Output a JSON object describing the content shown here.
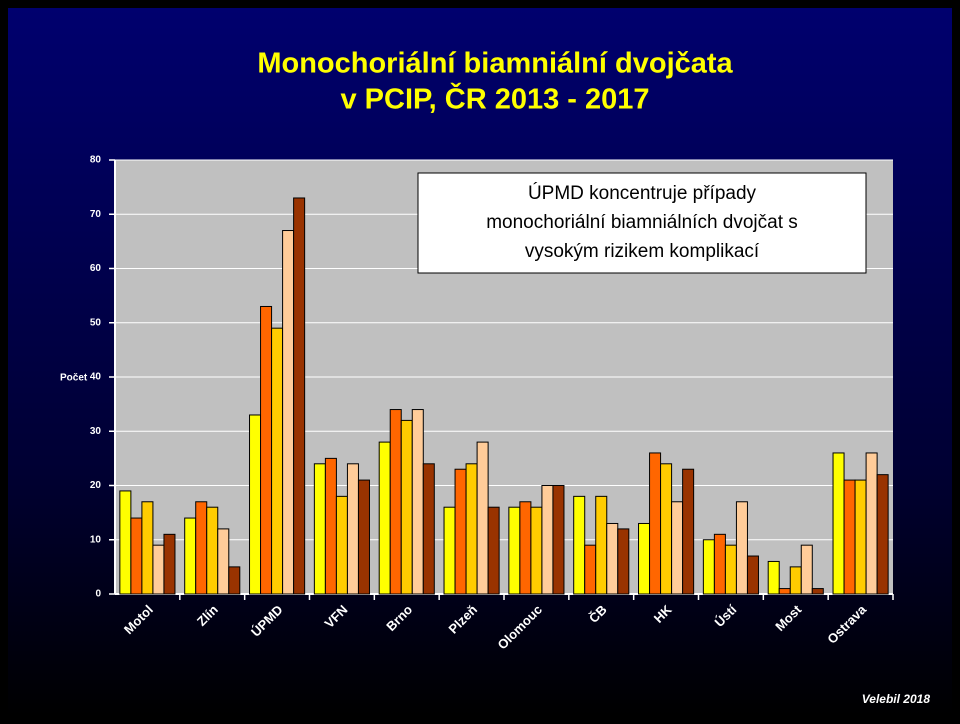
{
  "chart_data": {
    "type": "bar",
    "title": [
      "Monochoriální biamniální dvojčata",
      "v PCIP, ČR 2013 - 2017"
    ],
    "y_label": "Počet",
    "annotation": [
      "ÚPMD koncentruje případy",
      "monochoriální biamniálních dvojčat s",
      "vysokým rizikem komplikací"
    ],
    "footer": "Velebil 2018",
    "categories": [
      "Motol",
      "Zlín",
      "ÚPMD",
      "VFN",
      "Brno",
      "Plzeň",
      "Olomouc",
      "ČB",
      "HK",
      "Ústí",
      "Most",
      "Ostrava"
    ],
    "series": [
      {
        "color": "#ffff00",
        "values": [
          19,
          14,
          33,
          24,
          28,
          16,
          16,
          18,
          13,
          10,
          6,
          26
        ]
      },
      {
        "color": "#ff6600",
        "values": [
          14,
          17,
          53,
          25,
          34,
          23,
          17,
          9,
          26,
          11,
          1,
          21
        ]
      },
      {
        "color": "#ffcc00",
        "values": [
          17,
          16,
          49,
          18,
          32,
          24,
          16,
          18,
          24,
          9,
          5,
          21
        ]
      },
      {
        "color": "#ffcc99",
        "values": [
          9,
          12,
          67,
          24,
          34,
          28,
          20,
          13,
          17,
          17,
          9,
          26
        ]
      },
      {
        "color": "#993300",
        "values": [
          11,
          5,
          73,
          21,
          24,
          16,
          20,
          12,
          23,
          7,
          1,
          22
        ]
      }
    ],
    "ylim": [
      0,
      80
    ],
    "yticks": [
      0,
      10,
      20,
      30,
      40,
      50,
      60,
      70,
      80
    ],
    "grid": true
  }
}
